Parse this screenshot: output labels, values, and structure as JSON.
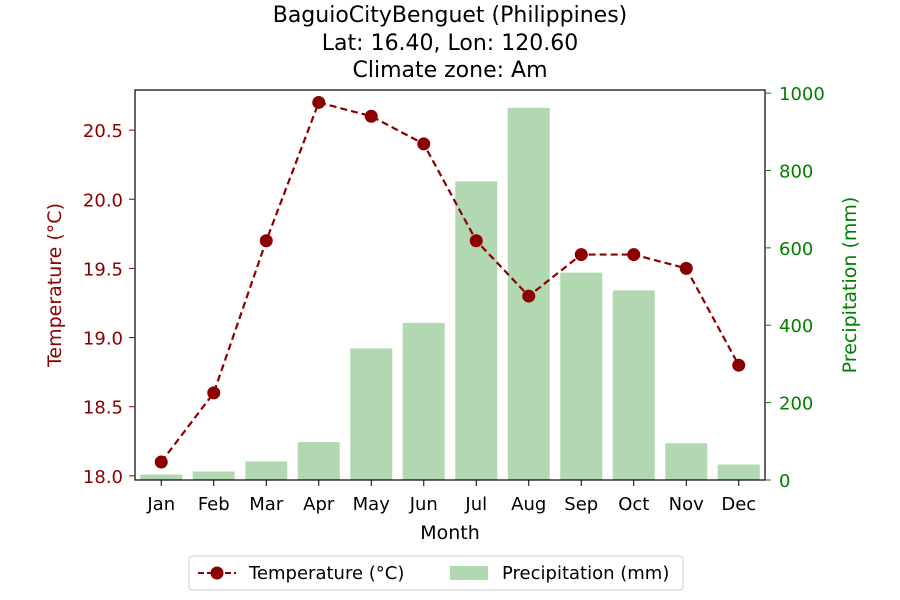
{
  "chart_data": {
    "type": "bar+line",
    "title_lines": [
      "BaguioCityBenguet (Philippines)",
      "Lat: 16.40, Lon: 120.60",
      "Climate zone: Am"
    ],
    "xlabel": "Month",
    "y_left_label": "Temperature (°C)",
    "y_right_label": "Precipitation (mm)",
    "categories": [
      "Jan",
      "Feb",
      "Mar",
      "Apr",
      "May",
      "Jun",
      "Jul",
      "Aug",
      "Sep",
      "Oct",
      "Nov",
      "Dec"
    ],
    "y_left_ticks": [
      "18.0",
      "18.5",
      "19.0",
      "19.5",
      "20.0",
      "20.5"
    ],
    "y_right_ticks": [
      "0",
      "200",
      "400",
      "600",
      "800",
      "1000"
    ],
    "y_left_range": [
      17.97,
      20.79
    ],
    "y_right_range": [
      0,
      1008
    ],
    "series": [
      {
        "name": "Temperature (°C)",
        "kind": "line",
        "axis": "left",
        "color": "#8b0000",
        "values": [
          18.1,
          18.6,
          19.7,
          20.7,
          20.6,
          20.4,
          19.7,
          19.3,
          19.6,
          19.6,
          19.5,
          18.8
        ]
      },
      {
        "name": "Precipitation (mm)",
        "kind": "bar",
        "axis": "right",
        "color": "#b2d8b2",
        "values": [
          14,
          22,
          48,
          98,
          340,
          406,
          772,
          962,
          536,
          490,
          95,
          40
        ]
      }
    ],
    "left_axis_color": "#8b0000",
    "right_axis_color": "#008000",
    "grid": false,
    "legend_position": "bottom-center"
  }
}
